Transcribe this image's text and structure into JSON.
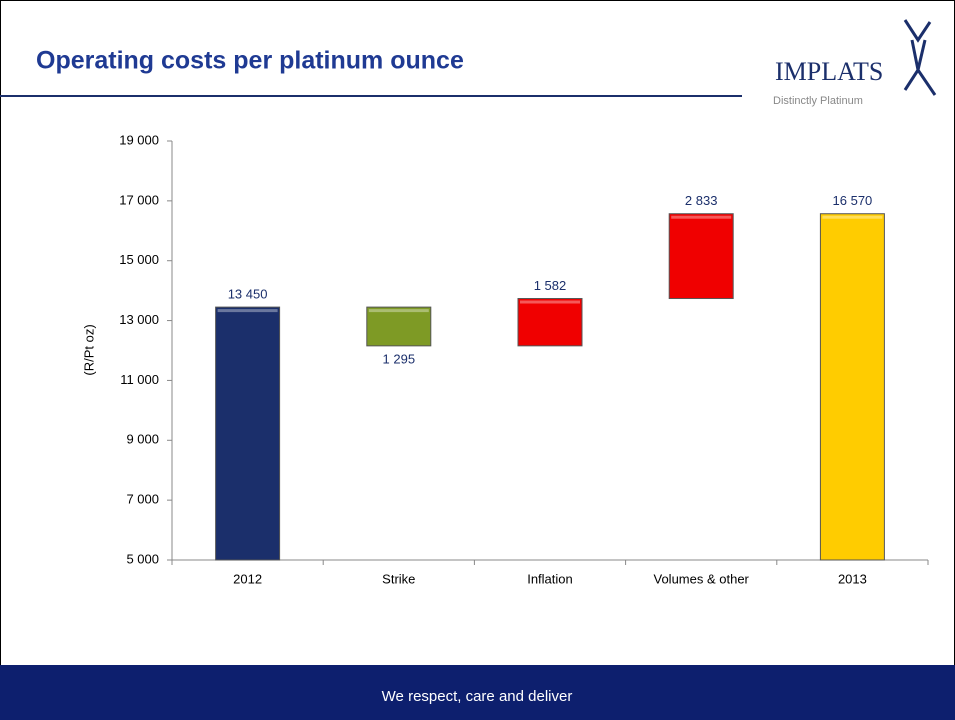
{
  "header": {
    "title": "Operating costs per platinum ounce",
    "logo": "IMPLATS",
    "logo_tagline": "Distinctly Platinum"
  },
  "footer": {
    "text": "We respect, care and deliver"
  },
  "chart_data": {
    "type": "waterfall",
    "categories": [
      "2012",
      "Strike",
      "Inflation",
      "Volumes & other",
      "2013"
    ],
    "values": [
      13450,
      -1295,
      1582,
      2833,
      16570
    ],
    "value_labels": [
      "13 450",
      "1 295",
      "1 582",
      "2 833",
      "16 570"
    ],
    "colors": [
      "#1b2f6b",
      "#7e9a25",
      "#f00000",
      "#f00000",
      "#ffcc00"
    ],
    "y_label": "(R/Pt oz)",
    "ylim": [
      5000,
      19000
    ],
    "yticks": [
      {
        "value": 5000,
        "label": "5 000"
      },
      {
        "value": 7000,
        "label": "7 000"
      },
      {
        "value": 9000,
        "label": "9 000"
      },
      {
        "value": 11000,
        "label": "11 000"
      },
      {
        "value": 13000,
        "label": "13 000"
      },
      {
        "value": 15000,
        "label": "15 000"
      },
      {
        "value": 17000,
        "label": "17 000"
      },
      {
        "value": 19000,
        "label": "19 000"
      }
    ],
    "grid": false
  }
}
